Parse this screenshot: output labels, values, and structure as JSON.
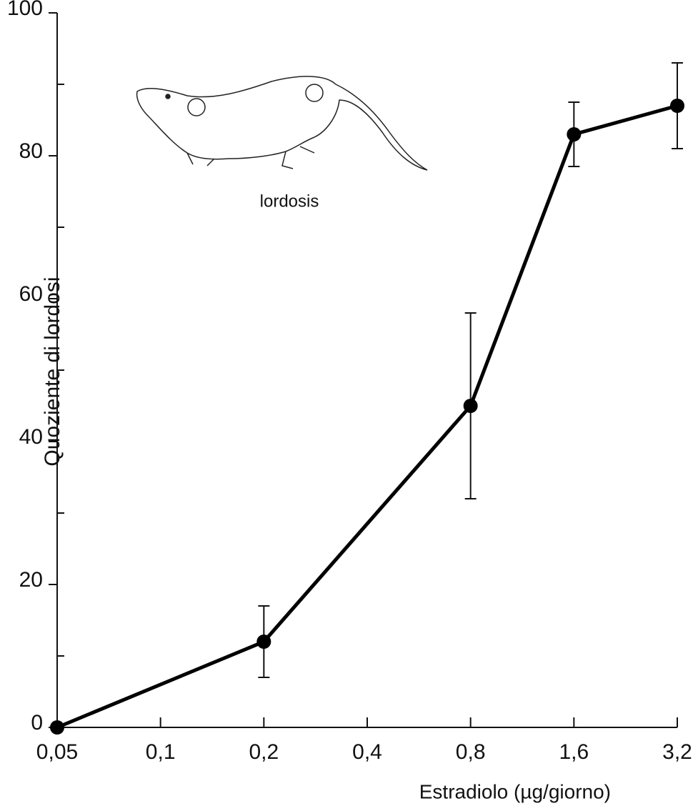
{
  "chart_data": {
    "type": "line",
    "x_label": "Estradiolo (µg/giorno)",
    "y_label": "Quoziente di lordosi",
    "annotation": "lordosis",
    "x": [
      0.05,
      0.2,
      0.8,
      1.6,
      3.2
    ],
    "series": [
      {
        "color": "#000000",
        "values": [
          0,
          12,
          45,
          83,
          87
        ],
        "errors": [
          null,
          5,
          13,
          4.5,
          6
        ]
      }
    ],
    "xlim": [
      0.05,
      3.2
    ],
    "xlog": true,
    "xticks": [
      {
        "value": 0.05,
        "label": "0,05"
      },
      {
        "value": 0.1,
        "label": "0,1"
      },
      {
        "value": 0.2,
        "label": "0,2"
      },
      {
        "value": 0.4,
        "label": "0,4"
      },
      {
        "value": 0.8,
        "label": "0,8"
      },
      {
        "value": 1.6,
        "label": "1,6"
      },
      {
        "value": 3.2,
        "label": "3,2"
      }
    ],
    "ylim": [
      0,
      100
    ],
    "yticks": [
      0,
      20,
      40,
      60,
      80,
      100
    ],
    "yminorticks": [
      10,
      30,
      50,
      70,
      90
    ]
  }
}
